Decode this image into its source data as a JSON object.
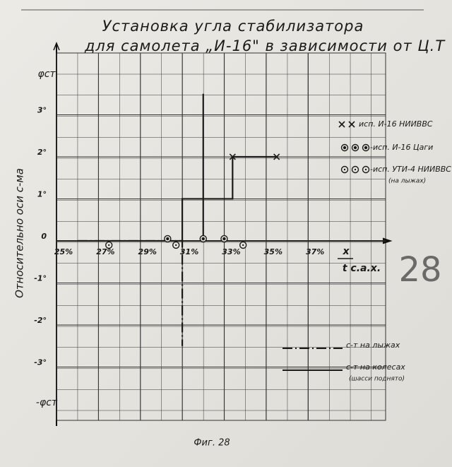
{
  "chart_data": {
    "type": "line",
    "title": "Установка угла стабилизатора",
    "subtitle": "для самолета „И-16\" в зависимости от Ц.Т",
    "y_label": "Относительно оси с-ма",
    "y_top_label": "φст",
    "y_bottom_label": "-φст",
    "x_label": "x",
    "x_label_under": "t с.а.х.",
    "caption": "Фиг. 28",
    "page_mark": "28",
    "xlim": [
      25,
      40.7
    ],
    "ylim": [
      -4.27,
      4.47
    ],
    "xticks": [
      {
        "value": 25,
        "label": "25%"
      },
      {
        "value": 27,
        "label": "27%"
      },
      {
        "value": 29,
        "label": "29%"
      },
      {
        "value": 31,
        "label": "31%"
      },
      {
        "value": 33,
        "label": "33%"
      },
      {
        "value": 35,
        "label": "35%"
      },
      {
        "value": 37,
        "label": "37%"
      }
    ],
    "yticks": [
      {
        "value": 3,
        "label": "3°"
      },
      {
        "value": 2,
        "label": "2°"
      },
      {
        "value": 1,
        "label": "1°"
      },
      0,
      {
        "value": -1,
        "label": "-1°"
      },
      {
        "value": -2,
        "label": "-2°"
      },
      {
        "value": -3,
        "label": "-3°"
      }
    ],
    "grid": true,
    "series": [
      {
        "name": "с-т на колесах",
        "note": "(шасси поднято)",
        "style": "solid",
        "color": "#1a1a1a",
        "x": [
          26,
          31,
          31,
          33.4,
          33.4,
          35.5
        ],
        "values": [
          0,
          0,
          1,
          1,
          2,
          2
        ]
      },
      {
        "name": "с-т на лыжах",
        "style": "dash-dot",
        "color": "#1a1a1a",
        "x": [
          26,
          31,
          31
        ],
        "values": [
          0,
          0,
          -2.5
        ]
      },
      {
        "name": "исп. И-16 НИИВВС",
        "marker": "cross",
        "color": "#1a1a1a",
        "x": [
          33.4,
          35.5
        ],
        "values": [
          2,
          2
        ]
      },
      {
        "name": "-исп. И-16 Цаги",
        "marker": "circle-x",
        "color": "#1a1a1a",
        "x": [
          30.3,
          32,
          33
        ],
        "values": [
          0.05,
          0.05,
          0.05
        ]
      },
      {
        "name": "-исп. УТИ-4 НИИВВС",
        "note": "(на лыжах)",
        "marker": "circle-dot",
        "color": "#1a1a1a",
        "x": [
          27.5,
          30.7,
          33.9
        ],
        "values": [
          -0.1,
          -0.1,
          -0.1
        ]
      }
    ],
    "extra_lines": [
      {
        "x": [
          32,
          32
        ],
        "values": [
          0,
          3.5
        ],
        "color": "#1a1a1a"
      }
    ]
  }
}
